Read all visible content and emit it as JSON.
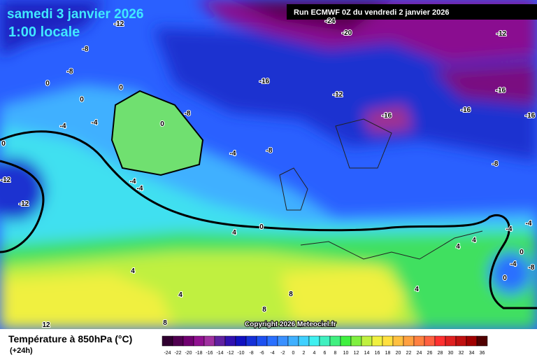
{
  "header": {
    "date": "samedi 3 janvier 2026",
    "time": "1:00 locale",
    "run": "Run ECMWF 0Z du vendredi 2 janvier 2026"
  },
  "copyright": "Copyright 2026 Meteociel.fr",
  "legend": {
    "title": "Température à 850hPa (°C)",
    "offset": "(+24h)",
    "labels": [
      -24,
      -22,
      -20,
      -18,
      -16,
      -14,
      -12,
      -10,
      -8,
      -6,
      -4,
      -2,
      0,
      2,
      4,
      6,
      8,
      10,
      12,
      14,
      16,
      18,
      20,
      22,
      24,
      26,
      28,
      30,
      32,
      34,
      36
    ],
    "colors": [
      "#300030",
      "#500050",
      "#700070",
      "#901090",
      "#a030a0",
      "#6020a0",
      "#3010b0",
      "#1010c0",
      "#1530d8",
      "#1d50f0",
      "#2a70ff",
      "#3a90ff",
      "#40b0ff",
      "#40d0ff",
      "#40f0f0",
      "#40f0c0",
      "#40f080",
      "#40f040",
      "#80f040",
      "#c0f040",
      "#f0f040",
      "#ffe040",
      "#ffc040",
      "#ffa040",
      "#ff8040",
      "#ff6040",
      "#ff3030",
      "#e02020",
      "#c01010",
      "#a00000",
      "#500000"
    ]
  },
  "contour_labels": [
    "-12",
    "-8",
    "-8",
    "0",
    "0",
    "0",
    "-4",
    "-4",
    "0",
    "-8",
    "-4",
    "-4",
    "-12",
    "-12",
    "-16",
    "-12",
    "-16",
    "-16",
    "-16",
    "-16",
    "-24",
    "-20",
    "-12",
    "-8",
    "-8",
    "-4",
    "0",
    "4",
    "4",
    "4",
    "4",
    "4",
    "8",
    "8",
    "8",
    "12",
    "-4",
    "-4",
    "0",
    "-4",
    "-8",
    "0",
    "4",
    "0"
  ]
}
